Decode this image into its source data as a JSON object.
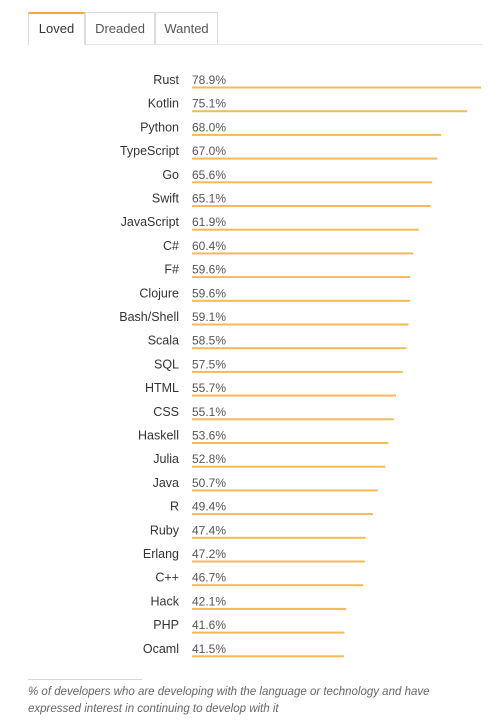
{
  "tabs": {
    "loved": "Loved",
    "dreaded": "Dreaded",
    "wanted": "Wanted"
  },
  "chart_data": {
    "type": "bar",
    "orientation": "horizontal",
    "categories": [
      "Rust",
      "Kotlin",
      "Python",
      "TypeScript",
      "Go",
      "Swift",
      "JavaScript",
      "C#",
      "F#",
      "Clojure",
      "Bash/Shell",
      "Scala",
      "SQL",
      "HTML",
      "CSS",
      "Haskell",
      "Julia",
      "Java",
      "R",
      "Ruby",
      "Erlang",
      "C++",
      "Hack",
      "PHP",
      "Ocaml"
    ],
    "values": [
      78.9,
      75.1,
      68.0,
      67.0,
      65.6,
      65.1,
      61.9,
      60.4,
      59.6,
      59.6,
      59.1,
      58.5,
      57.5,
      55.7,
      55.1,
      53.6,
      52.8,
      50.7,
      49.4,
      47.4,
      47.2,
      46.7,
      42.1,
      41.6,
      41.5
    ],
    "value_labels": [
      "78.9%",
      "75.1%",
      "68.0%",
      "67.0%",
      "65.6%",
      "65.1%",
      "61.9%",
      "60.4%",
      "59.6%",
      "59.6%",
      "59.1%",
      "58.5%",
      "57.5%",
      "55.7%",
      "55.1%",
      "53.6%",
      "52.8%",
      "50.7%",
      "49.4%",
      "47.4%",
      "47.2%",
      "46.7%",
      "42.1%",
      "41.6%",
      "41.5%"
    ],
    "unit": "%",
    "bar_color": "#f4ba5a",
    "grid": false,
    "legend": "none"
  },
  "footnote": "% of developers who are developing with the language or technology and have expressed interest in continuing to develop with it"
}
